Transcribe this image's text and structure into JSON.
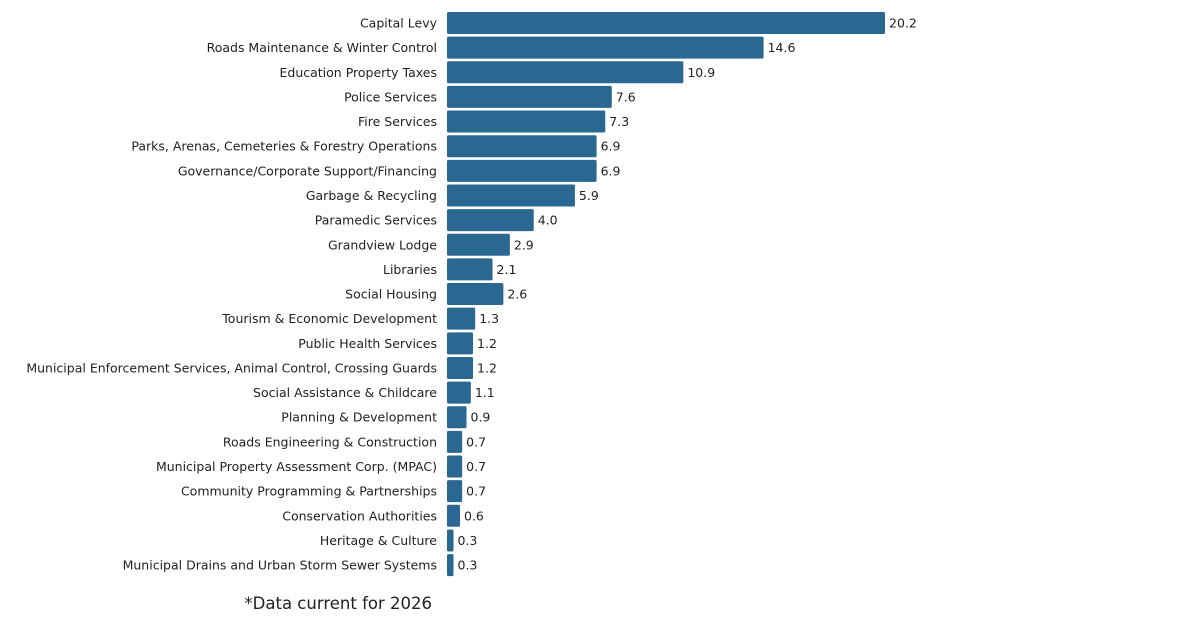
{
  "chart_data": {
    "type": "bar",
    "orientation": "horizontal",
    "bar_color": "#2b6891",
    "grid": false,
    "xlim": [
      0,
      20.2
    ],
    "categories": [
      "Capital Levy",
      "Roads Maintenance & Winter Control",
      "Education Property Taxes",
      "Police Services",
      "Fire Services",
      "Parks, Arenas, Cemeteries & Forestry Operations",
      "Governance/Corporate Support/Financing",
      "Garbage & Recycling",
      "Paramedic Services",
      "Grandview Lodge",
      "Libraries",
      "Social Housing",
      "Tourism & Economic Development",
      "Public Health Services",
      "Municipal Enforcement Services, Animal Control, Crossing Guards",
      "Social Assistance & Childcare",
      "Planning & Development",
      "Roads Engineering & Construction",
      "Municipal Property Assessment Corp. (MPAC)",
      "Community Programming & Partnerships",
      "Conservation Authorities",
      "Heritage & Culture",
      "Municipal Drains and Urban Storm Sewer Systems"
    ],
    "values": [
      20.2,
      14.6,
      10.9,
      7.6,
      7.3,
      6.9,
      6.9,
      5.9,
      4.0,
      2.9,
      2.1,
      2.6,
      1.3,
      1.2,
      1.2,
      1.1,
      0.9,
      0.7,
      0.7,
      0.7,
      0.6,
      0.3,
      0.3
    ],
    "value_labels": [
      "20.2",
      "14.6",
      "10.9",
      "7.6",
      "7.3",
      "6.9",
      "6.9",
      "5.9",
      "4.0",
      "2.9",
      "2.1",
      "2.6",
      "1.3",
      "1.2",
      "1.2",
      "1.1",
      "0.9",
      "0.7",
      "0.7",
      "0.7",
      "0.6",
      "0.3",
      "0.3"
    ],
    "footnote": "*Data current for 2026"
  }
}
